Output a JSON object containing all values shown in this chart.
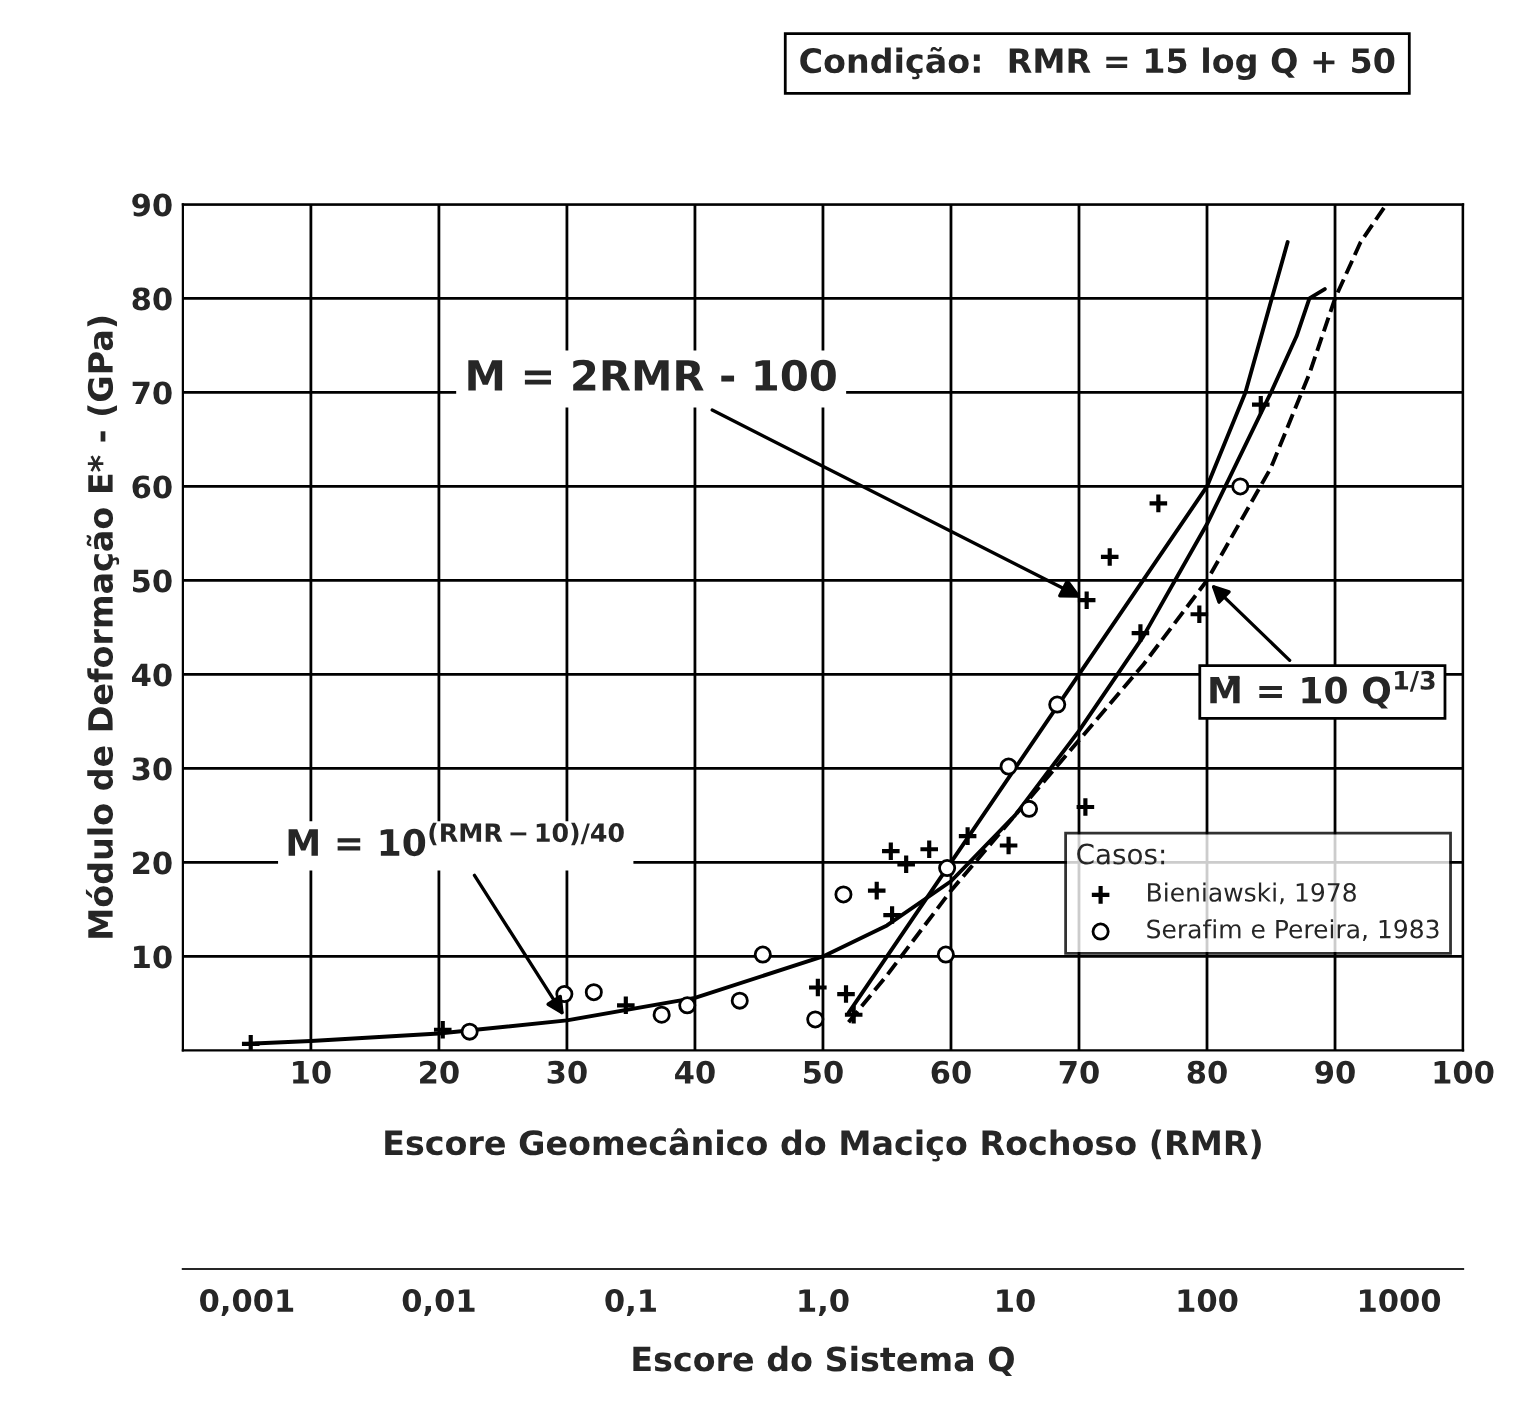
{
  "chart_data": {
    "type": "scatter",
    "xlabel": "Escore Geomecânico do Maciço Rochoso (RMR)",
    "ylabel": "Módulo de Deformação E* - (GPa)",
    "legend_title": "Casos:",
    "legend": "bottom right",
    "grid": true,
    "xlim": [
      0,
      100
    ],
    "xticks": [
      10,
      20,
      30,
      40,
      50,
      60,
      70,
      80,
      90,
      100
    ],
    "ylim": [
      0,
      90
    ],
    "yticks": [
      10,
      20,
      30,
      40,
      50,
      60,
      70,
      80,
      90
    ],
    "x2label": "Escore do Sistema Q",
    "log": "x2",
    "x2lim": [
      0.000464,
      2154
    ],
    "x2ticks": [
      {
        "value": 0.001,
        "label": "0,001"
      },
      {
        "value": 0.01,
        "label": "0,01"
      },
      {
        "value": 0.1,
        "label": "0,1"
      },
      {
        "value": 1,
        "label": "1,0"
      },
      {
        "value": 10,
        "label": "10"
      },
      {
        "value": 100,
        "label": "100"
      },
      {
        "value": 1000,
        "label": "1000"
      }
    ],
    "series": [
      {
        "name": "Bieniawski, 1978",
        "marker": "cross",
        "color": "#000000",
        "x": [
          5.3,
          20.3,
          34.6,
          49.6,
          51.8,
          52.4,
          54.2,
          55.3,
          55.4,
          56.5,
          58.3,
          61.3,
          64.5,
          70.5,
          70.6,
          72.4,
          74.8,
          76.2,
          79.4,
          84.2
        ],
        "values": [
          0.7,
          2.2,
          4.8,
          6.7,
          6,
          3.8,
          17,
          21.2,
          14.4,
          19.8,
          21.4,
          22.8,
          21.8,
          25.9,
          47.9,
          52.5,
          44.4,
          58.2,
          46.4,
          68.7
        ]
      },
      {
        "name": "Serafim e Pereira, 1983",
        "marker": "circle",
        "color": "#000000",
        "x": [
          22.4,
          29.8,
          32.1,
          37.4,
          39.4,
          43.5,
          45.3,
          49.4,
          51.6,
          59.6,
          59.7,
          64.5,
          66.1,
          68.3,
          82.6
        ],
        "values": [
          2,
          6,
          6.2,
          3.8,
          4.8,
          5.3,
          10.2,
          3.3,
          16.6,
          10.2,
          19.4,
          30.2,
          25.7,
          36.8,
          60
        ]
      },
      {
        "type": "line",
        "line_style": "solid",
        "color": "#000000",
        "x": [
          5,
          10,
          20,
          30,
          40,
          50,
          55,
          60,
          65,
          70,
          75,
          80,
          85,
          87,
          88,
          89.2
        ],
        "values": [
          0.7,
          1,
          1.8,
          3.2,
          5.6,
          10,
          13.3,
          18,
          25,
          34,
          44,
          56,
          70,
          76,
          80,
          81
        ]
      },
      {
        "type": "line",
        "line_style": "solid",
        "color": "#000000",
        "x": [
          52,
          60,
          70,
          80,
          83,
          86.3
        ],
        "values": [
          4,
          20,
          40,
          60,
          70,
          86
        ]
      },
      {
        "type": "line",
        "line_style": "dashed",
        "color": "#000000",
        "x": [
          52,
          55,
          60,
          65,
          70,
          75,
          80,
          85,
          88,
          90,
          92,
          94
        ],
        "values": [
          3,
          8,
          17,
          25,
          33,
          41,
          50,
          62,
          72,
          80,
          86,
          90
        ]
      }
    ],
    "annotations": [
      "Condição:  RMR = 15 log Q + 50",
      {
        "text": "M = 2RMR - 100",
        "x": 70.6,
        "y": 47.9
      },
      {
        "text": "M = 10$^{(RMR−10)/40}$",
        "x": 30,
        "y": 3.2
      },
      {
        "text": "M̄ = 10 Q$^{1/3}$",
        "x": 80,
        "y": 50
      }
    ]
  }
}
